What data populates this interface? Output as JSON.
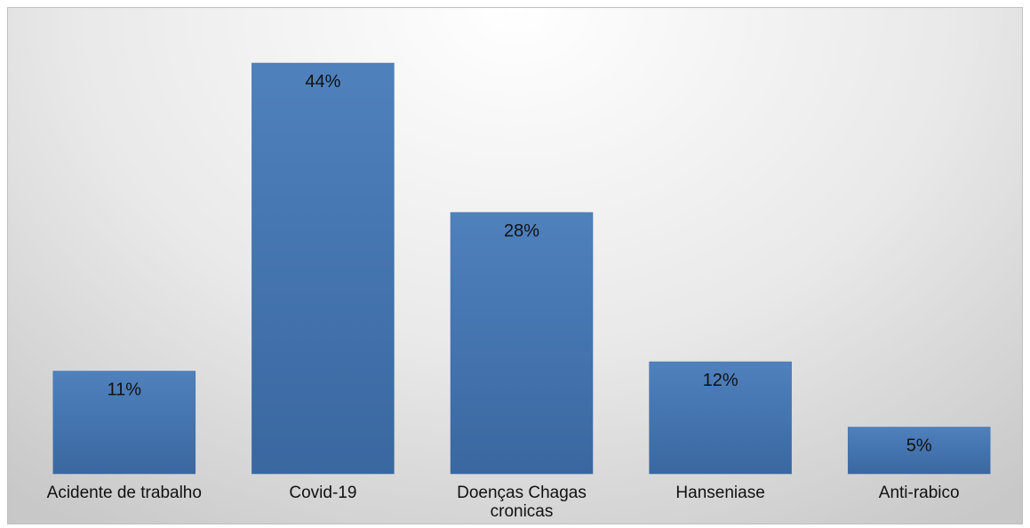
{
  "chart_data": {
    "type": "bar",
    "categories": [
      "Acidente de trabalho",
      "Covid-19",
      "Doenças Chagas cronicas",
      "Hanseniase",
      "Anti-rabico"
    ],
    "category_lines": [
      [
        "Acidente de trabalho"
      ],
      [
        "Covid-19"
      ],
      [
        "Doenças Chagas",
        "cronicas"
      ],
      [
        "Hanseniase"
      ],
      [
        "Anti-rabico"
      ]
    ],
    "values": [
      11,
      44,
      28,
      12,
      5
    ],
    "data_labels": [
      "11%",
      "44%",
      "28%",
      "12%",
      "5%"
    ],
    "ylim": [
      0,
      50
    ],
    "grid": false,
    "legend": "none",
    "bar_color": "#4f81bd"
  }
}
